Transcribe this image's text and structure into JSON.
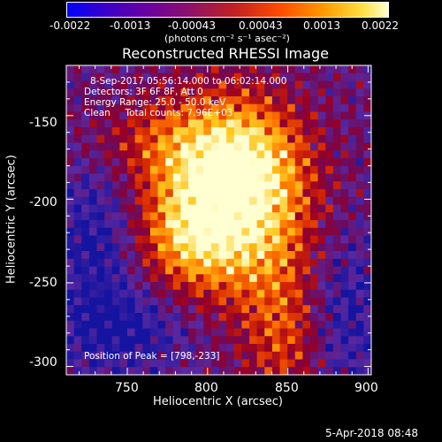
{
  "colorbar": {
    "ticks": [
      "-0.0022",
      "-0.0013",
      "-0.00043",
      "0.00043",
      "0.0013",
      "0.0022"
    ],
    "units_label": "(photons cm⁻² s⁻¹ asec⁻²)",
    "min": -0.0022,
    "max": 0.0022,
    "colors": [
      "#0000ff",
      "#6a00a0",
      "#c02020",
      "#ff9a00",
      "#ffffd0"
    ]
  },
  "chart_data": {
    "type": "heatmap",
    "title": "Reconstructed RHESSI Image",
    "xlabel": "Heliocentric X (arcsec)",
    "ylabel": "Heliocentric Y (arcsec)",
    "xlim": [
      712,
      902
    ],
    "ylim": [
      -305,
      -120
    ],
    "xticks": [
      750,
      800,
      850,
      900
    ],
    "yticks": [
      -150,
      -200,
      -250,
      -300
    ],
    "annotations": [
      "8-Sep-2017 05:56:14.000 to 06:02:14.000",
      "Detectors: 3F 6F 8F, Att 0",
      "Energy Range: 25.0 - 50.0 keV",
      "Clean     Total counts: 7.96E+03"
    ],
    "peak_label": "Position of Peak = [798,-233]",
    "peak": [
      798,
      -233
    ]
  },
  "timestamp": "5-Apr-2018 08:48"
}
